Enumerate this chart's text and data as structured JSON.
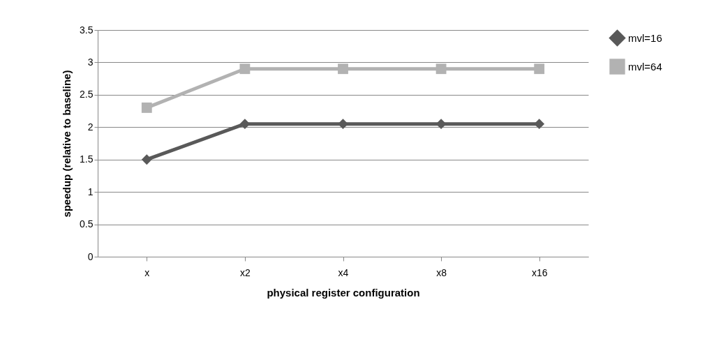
{
  "chart_data": {
    "type": "line",
    "xlabel": "physical  register configuration",
    "ylabel": "speedup (relative to baseline)",
    "categories": [
      "x",
      "x2",
      "x4",
      "x8",
      "x16"
    ],
    "series": [
      {
        "name": "mvl=16",
        "color": "#595959",
        "marker": "diamond",
        "values": [
          1.5,
          2.05,
          2.05,
          2.05,
          2.05
        ]
      },
      {
        "name": "mvl=64",
        "color": "#b2b2b2",
        "marker": "square",
        "values": [
          2.3,
          2.9,
          2.9,
          2.9,
          2.9
        ]
      }
    ],
    "ylim": [
      0,
      3.5
    ],
    "yticks": [
      0,
      0.5,
      1,
      1.5,
      2,
      2.5,
      3,
      3.5
    ],
    "grid": "y",
    "legend": "right"
  }
}
